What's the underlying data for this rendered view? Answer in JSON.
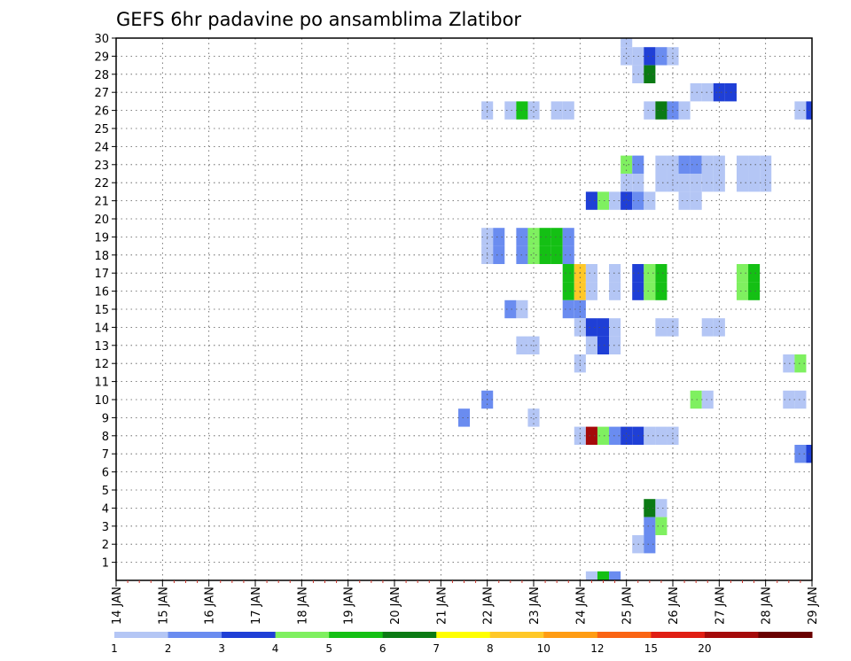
{
  "chart_data": {
    "type": "heatmap",
    "title": "GEFS 6hr padavine po ansamblima Zlatibor",
    "xlabel": "",
    "ylabel": "",
    "x_ticks": [
      "14 JAN",
      "15 JAN",
      "16 JAN",
      "17 JAN",
      "18 JAN",
      "19 JAN",
      "20 JAN",
      "21 JAN",
      "22 JAN",
      "23 JAN",
      "24 JAN",
      "25 JAN",
      "26 JAN",
      "27 JAN",
      "28 JAN",
      "29 JAN"
    ],
    "y_ticks": [
      "1",
      "2",
      "3",
      "4",
      "5",
      "6",
      "7",
      "8",
      "9",
      "10",
      "11",
      "12",
      "13",
      "14",
      "15",
      "16",
      "17",
      "18",
      "19",
      "20",
      "21",
      "22",
      "23",
      "24",
      "25",
      "26",
      "27",
      "28",
      "29",
      "30"
    ],
    "xlim": [
      0,
      60
    ],
    "ylim": [
      0,
      30
    ],
    "grid": true,
    "legend_placement": "bottom",
    "x_units": "6-hour steps since 14 JAN 00Z",
    "cells_format": "[ensemble_member, time_step, color_class]",
    "color_classes": [
      {
        "label": "1",
        "color": "#b4c6f5"
      },
      {
        "label": "2",
        "color": "#6a8cf0"
      },
      {
        "label": "3",
        "color": "#1f3fd6"
      },
      {
        "label": "4",
        "color": "#7ff060"
      },
      {
        "label": "5",
        "color": "#14c014"
      },
      {
        "label": "6",
        "color": "#0b7a14"
      },
      {
        "label": "7",
        "color": "#ffff00"
      },
      {
        "label": "8",
        "color": "#ffc828"
      },
      {
        "label": "10",
        "color": "#ff9c14"
      },
      {
        "label": "12",
        "color": "#fa6414"
      },
      {
        "label": "15",
        "color": "#e01e14"
      },
      {
        "label": "20",
        "color": "#a50a0a"
      },
      {
        "label": "",
        "color": "#6a0000"
      }
    ],
    "cells": [
      [
        30,
        44,
        0
      ],
      [
        29,
        44,
        0
      ],
      [
        29,
        45,
        0
      ],
      [
        29,
        46,
        2
      ],
      [
        29,
        47,
        1
      ],
      [
        29,
        48,
        0
      ],
      [
        28,
        45,
        0
      ],
      [
        28,
        46,
        5
      ],
      [
        27,
        50,
        0
      ],
      [
        27,
        51,
        0
      ],
      [
        27,
        52,
        2
      ],
      [
        27,
        53,
        2
      ],
      [
        26,
        32,
        0
      ],
      [
        26,
        34,
        0
      ],
      [
        26,
        35,
        4
      ],
      [
        26,
        36,
        0
      ],
      [
        26,
        38,
        0
      ],
      [
        26,
        39,
        0
      ],
      [
        26,
        46,
        0
      ],
      [
        26,
        47,
        5
      ],
      [
        26,
        48,
        1
      ],
      [
        26,
        49,
        0
      ],
      [
        26,
        59,
        0
      ],
      [
        26,
        60,
        2
      ],
      [
        23,
        44,
        3
      ],
      [
        23,
        45,
        1
      ],
      [
        23,
        47,
        0
      ],
      [
        23,
        48,
        0
      ],
      [
        23,
        49,
        1
      ],
      [
        23,
        50,
        1
      ],
      [
        23,
        51,
        0
      ],
      [
        23,
        52,
        0
      ],
      [
        23,
        54,
        0
      ],
      [
        23,
        55,
        0
      ],
      [
        23,
        56,
        0
      ],
      [
        22,
        44,
        0
      ],
      [
        22,
        45,
        0
      ],
      [
        22,
        47,
        0
      ],
      [
        22,
        48,
        0
      ],
      [
        22,
        49,
        0
      ],
      [
        22,
        50,
        0
      ],
      [
        22,
        51,
        0
      ],
      [
        22,
        52,
        0
      ],
      [
        22,
        54,
        0
      ],
      [
        22,
        55,
        0
      ],
      [
        22,
        56,
        0
      ],
      [
        21,
        41,
        2
      ],
      [
        21,
        42,
        3
      ],
      [
        21,
        43,
        0
      ],
      [
        21,
        44,
        2
      ],
      [
        21,
        45,
        1
      ],
      [
        21,
        46,
        0
      ],
      [
        21,
        49,
        0
      ],
      [
        21,
        50,
        0
      ],
      [
        19,
        32,
        0
      ],
      [
        19,
        33,
        1
      ],
      [
        19,
        35,
        1
      ],
      [
        19,
        36,
        3
      ],
      [
        19,
        37,
        4
      ],
      [
        19,
        38,
        4
      ],
      [
        19,
        39,
        1
      ],
      [
        18,
        32,
        0
      ],
      [
        18,
        33,
        1
      ],
      [
        18,
        35,
        1
      ],
      [
        18,
        36,
        3
      ],
      [
        18,
        37,
        4
      ],
      [
        18,
        38,
        4
      ],
      [
        18,
        39,
        1
      ],
      [
        17,
        39,
        4
      ],
      [
        17,
        40,
        7
      ],
      [
        17,
        41,
        0
      ],
      [
        17,
        43,
        0
      ],
      [
        17,
        45,
        2
      ],
      [
        17,
        46,
        3
      ],
      [
        17,
        47,
        4
      ],
      [
        17,
        54,
        3
      ],
      [
        17,
        55,
        4
      ],
      [
        16,
        39,
        4
      ],
      [
        16,
        40,
        7
      ],
      [
        16,
        41,
        0
      ],
      [
        16,
        43,
        0
      ],
      [
        16,
        45,
        2
      ],
      [
        16,
        46,
        3
      ],
      [
        16,
        47,
        4
      ],
      [
        16,
        54,
        3
      ],
      [
        16,
        55,
        4
      ],
      [
        15,
        34,
        1
      ],
      [
        15,
        35,
        0
      ],
      [
        15,
        39,
        1
      ],
      [
        15,
        40,
        1
      ],
      [
        14,
        40,
        0
      ],
      [
        14,
        41,
        2
      ],
      [
        14,
        42,
        2
      ],
      [
        14,
        43,
        0
      ],
      [
        14,
        47,
        0
      ],
      [
        14,
        48,
        0
      ],
      [
        14,
        51,
        0
      ],
      [
        14,
        52,
        0
      ],
      [
        13,
        35,
        0
      ],
      [
        13,
        36,
        0
      ],
      [
        13,
        41,
        0
      ],
      [
        13,
        42,
        2
      ],
      [
        13,
        43,
        0
      ],
      [
        12,
        40,
        0
      ],
      [
        12,
        58,
        0
      ],
      [
        12,
        59,
        3
      ],
      [
        10,
        32,
        1
      ],
      [
        10,
        50,
        3
      ],
      [
        10,
        51,
        0
      ],
      [
        10,
        58,
        0
      ],
      [
        10,
        59,
        0
      ],
      [
        9,
        30,
        1
      ],
      [
        9,
        36,
        0
      ],
      [
        8,
        40,
        0
      ],
      [
        8,
        41,
        11
      ],
      [
        8,
        42,
        3
      ],
      [
        8,
        43,
        1
      ],
      [
        8,
        44,
        2
      ],
      [
        8,
        45,
        2
      ],
      [
        8,
        46,
        0
      ],
      [
        8,
        47,
        0
      ],
      [
        8,
        48,
        0
      ],
      [
        7,
        59,
        1
      ],
      [
        7,
        60,
        2
      ],
      [
        4,
        46,
        5
      ],
      [
        4,
        47,
        0
      ],
      [
        3,
        46,
        1
      ],
      [
        3,
        47,
        3
      ],
      [
        2,
        45,
        0
      ],
      [
        2,
        46,
        1
      ],
      [
        0,
        41,
        0
      ],
      [
        0,
        42,
        4
      ],
      [
        0,
        43,
        1
      ]
    ]
  }
}
